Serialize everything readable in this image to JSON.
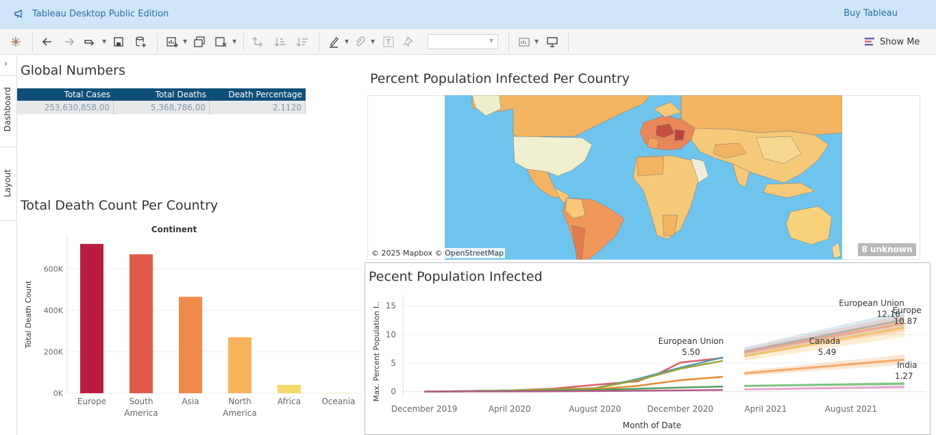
{
  "app": {
    "title": "Tableau Desktop Public Edition",
    "buy_label": "Buy Tableau"
  },
  "toolbar": {
    "show_me_label": "Show Me"
  },
  "sidebar": {
    "dashboard_label": "Dashboard",
    "layout_label": "Layout"
  },
  "global_numbers": {
    "title": "Global Numbers",
    "headers": [
      "Total Cases",
      "Total Deaths",
      "Death Percentage"
    ],
    "row": [
      "253,630,858.00",
      "5,368,786.00",
      "2.1120"
    ]
  },
  "map": {
    "title": "Percent Population Infected Per Country",
    "credit": "© 2025 Mapbox © OpenStreetMap",
    "unknown_label": "8 unknown"
  },
  "chart_data": [
    {
      "type": "bar",
      "title": "Total Death Count Per Country",
      "header": "Continent",
      "ylabel": "Total Death Count",
      "categories": [
        "Europe",
        "South America",
        "Asia",
        "North America",
        "Africa",
        "Oceania"
      ],
      "category_lines": [
        [
          "Europe"
        ],
        [
          "South",
          "America"
        ],
        [
          "Asia"
        ],
        [
          "North",
          "America"
        ],
        [
          "Africa"
        ],
        [
          "Oceania"
        ]
      ],
      "values": [
        720000,
        670000,
        465000,
        270000,
        40000,
        2000
      ],
      "colors": [
        "#b81c3f",
        "#e05a47",
        "#f08a4b",
        "#f7b35c",
        "#f7d86b",
        "#f7e79a"
      ],
      "yticks": [
        0,
        200000,
        400000,
        600000
      ],
      "ytick_labels": [
        "0K",
        "200K",
        "400K",
        "600K"
      ],
      "ylim": [
        0,
        760000
      ]
    },
    {
      "type": "line",
      "title": "Pecent Population Infected",
      "xlabel": "Month of Date",
      "ylabel": "Max. Percent Population I..",
      "xticks": [
        "December 2019",
        "April 2020",
        "August 2020",
        "December 2020",
        "April 2021",
        "August 2021"
      ],
      "xtick_months": [
        0,
        4,
        8,
        12,
        16,
        20
      ],
      "yticks": [
        0,
        5,
        10,
        15
      ],
      "ylim": [
        -1,
        17
      ],
      "xlim": [
        -1,
        23.5
      ],
      "series": [
        {
          "name": "European Union",
          "color": "#d95f67",
          "points": [
            [
              0,
              0
            ],
            [
              2,
              0.1
            ],
            [
              4,
              0.2
            ],
            [
              6,
              0.5
            ],
            [
              8,
              1.2
            ],
            [
              10,
              1.8
            ],
            [
              11,
              3.2
            ],
            [
              12,
              5.1
            ],
            [
              14,
              5.9
            ]
          ]
        },
        {
          "name": "",
          "color": "#4e9bb0",
          "points": [
            [
              0,
              0
            ],
            [
              4,
              0.2
            ],
            [
              8,
              0.6
            ],
            [
              10,
              2.2
            ],
            [
              12,
              4.2
            ],
            [
              14,
              6.0
            ]
          ]
        },
        {
          "name": "",
          "color": "#9aa632",
          "points": [
            [
              0,
              0
            ],
            [
              4,
              0.2
            ],
            [
              8,
              0.6
            ],
            [
              10,
              2.0
            ],
            [
              12,
              4.0
            ],
            [
              14,
              5.4
            ]
          ]
        },
        {
          "name": "",
          "color": "#e38a2e",
          "points": [
            [
              0,
              0
            ],
            [
              4,
              0.1
            ],
            [
              8,
              0.4
            ],
            [
              10,
              1.0
            ],
            [
              12,
              2.0
            ],
            [
              14,
              2.6
            ]
          ]
        },
        {
          "name": "",
          "color": "#4f9e58",
          "points": [
            [
              0,
              0
            ],
            [
              4,
              0.1
            ],
            [
              8,
              0.3
            ],
            [
              12,
              0.7
            ],
            [
              14,
              0.9
            ]
          ]
        },
        {
          "name": "",
          "color": "#b45a8c",
          "points": [
            [
              0,
              0
            ],
            [
              6,
              0.05
            ],
            [
              10,
              0.15
            ],
            [
              14,
              0.3
            ]
          ]
        }
      ],
      "trends": [
        {
          "color": "#7fb2c2",
          "from": [
            15,
            7.0
          ],
          "to": [
            22.5,
            12.6
          ],
          "band": 1.6
        },
        {
          "color": "#ef9a9a",
          "from": [
            15,
            6.8
          ],
          "to": [
            22.5,
            12.0
          ],
          "band": 1.5
        },
        {
          "color": "#f3c265",
          "from": [
            15,
            6.2
          ],
          "to": [
            22.5,
            11.2
          ],
          "band": 1.6
        },
        {
          "color": "#f6a96b",
          "from": [
            15,
            3.2
          ],
          "to": [
            22.5,
            5.6
          ],
          "band": 0.9
        },
        {
          "color": "#7cc47c",
          "from": [
            15,
            1.0
          ],
          "to": [
            22.5,
            1.4
          ],
          "band": 0.3
        },
        {
          "color": "#e6a7d0",
          "from": [
            15,
            0.4
          ],
          "to": [
            22.5,
            0.8
          ],
          "band": 0.3
        }
      ],
      "annotations": [
        {
          "label": "European Union",
          "value": "5.50",
          "at": [
            12.5,
            5.5
          ],
          "anchor": "middle"
        },
        {
          "label": "European Union",
          "value": "12.16",
          "at": [
            22.5,
            12.16
          ],
          "anchor": "end"
        },
        {
          "label": "Europe",
          "value": "10.87",
          "at": [
            23.3,
            10.87
          ],
          "anchor": "end"
        },
        {
          "label": "Canada",
          "value": "5.49",
          "at": [
            19.5,
            5.49
          ],
          "anchor": "end"
        },
        {
          "label": "India",
          "value": "1.27",
          "at": [
            23.1,
            1.27
          ],
          "anchor": "end"
        }
      ]
    }
  ]
}
